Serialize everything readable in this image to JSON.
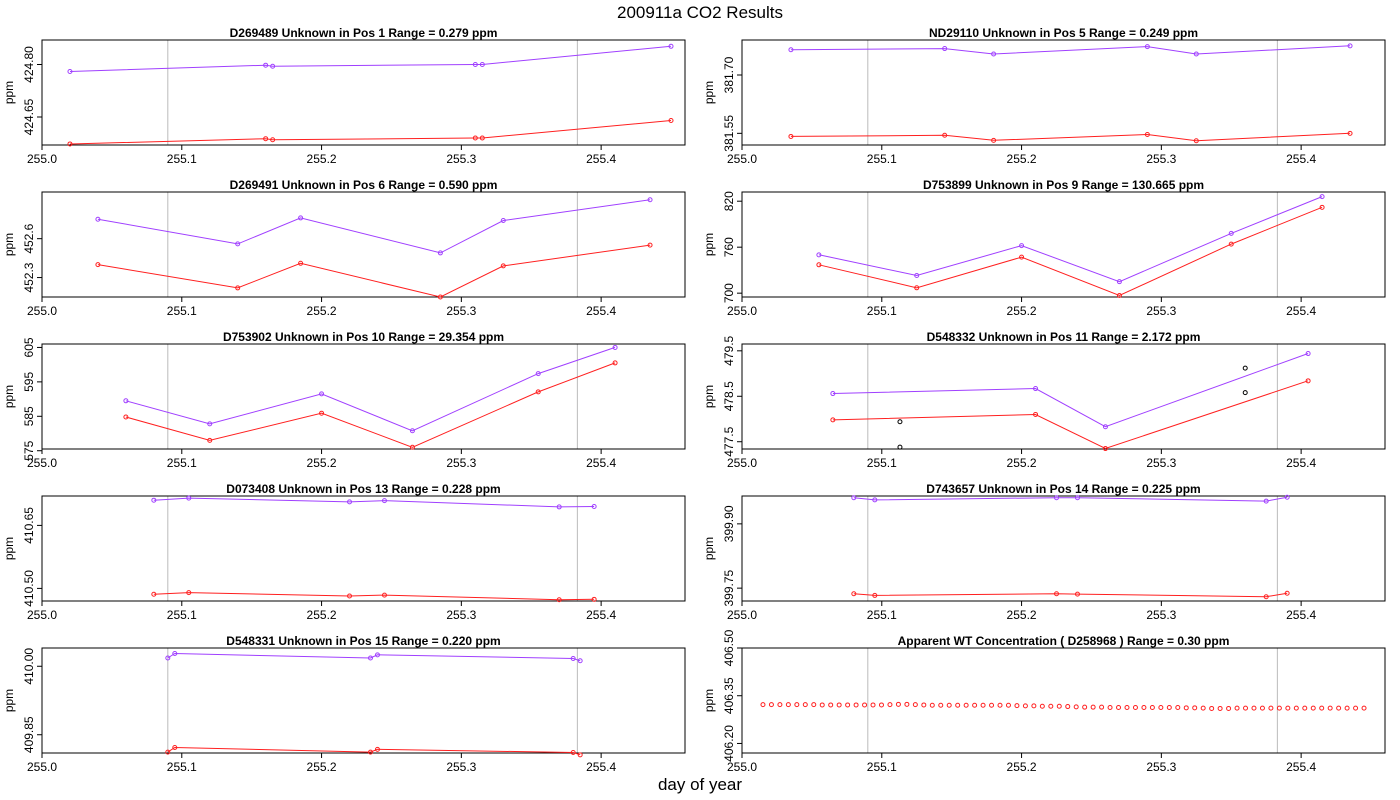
{
  "title": "200911a  CO2 Results",
  "xlabel": "day of year",
  "ylabel": "ppm",
  "colors": {
    "upper_series": "#a040ff",
    "lower_series": "#ff2020",
    "extra_points": "#000000",
    "vline": "#bbbbbb",
    "frame": "#000000"
  },
  "chart_data": [
    {
      "type": "line",
      "title": "D269489    Unknown in Pos 1          Range =  0.279 ppm",
      "xlabel": "",
      "ylabel": "ppm",
      "xlim": [
        255.0,
        255.46
      ],
      "ylim": [
        424.57,
        424.87
      ],
      "xticks": [
        "255.0",
        "255.1",
        "255.2",
        "255.3",
        "255.4"
      ],
      "yticks": [
        "424.65",
        "424.80"
      ],
      "vlines": [
        255.09,
        255.383
      ],
      "series": [
        {
          "name": "upper",
          "color": "#a040ff",
          "x": [
            255.02,
            255.16,
            255.165,
            255.31,
            255.315,
            255.45
          ],
          "y": [
            424.78,
            424.798,
            424.795,
            424.8,
            424.8,
            424.852
          ]
        },
        {
          "name": "lower",
          "color": "#ff2020",
          "x": [
            255.02,
            255.16,
            255.165,
            255.31,
            255.315,
            255.45
          ],
          "y": [
            424.573,
            424.588,
            424.585,
            424.59,
            424.59,
            424.64
          ]
        }
      ],
      "points": []
    },
    {
      "type": "line",
      "title": "ND29110    Unknown in Pos 5          Range =  0.249 ppm",
      "xlabel": "",
      "ylabel": "ppm",
      "xlim": [
        255.0,
        255.46
      ],
      "ylim": [
        381.52,
        381.79
      ],
      "xticks": [
        "255.0",
        "255.1",
        "255.2",
        "255.3",
        "255.4"
      ],
      "yticks": [
        "381.55",
        "381.70"
      ],
      "vlines": [
        255.09,
        255.383
      ],
      "series": [
        {
          "name": "upper",
          "color": "#a040ff",
          "x": [
            255.035,
            255.145,
            255.18,
            255.29,
            255.325,
            255.435
          ],
          "y": [
            381.765,
            381.768,
            381.754,
            381.773,
            381.754,
            381.775
          ]
        },
        {
          "name": "lower",
          "color": "#ff2020",
          "x": [
            255.035,
            255.145,
            255.18,
            255.29,
            255.325,
            255.435
          ],
          "y": [
            381.542,
            381.545,
            381.532,
            381.547,
            381.531,
            381.55
          ]
        }
      ],
      "points": []
    },
    {
      "type": "line",
      "title": "D269491    Unknown in Pos 6          Range =  0.590 ppm",
      "xlabel": "",
      "ylabel": "ppm",
      "xlim": [
        255.0,
        255.46
      ],
      "ylim": [
        452.15,
        452.96
      ],
      "xticks": [
        "255.0",
        "255.1",
        "255.2",
        "255.3",
        "255.4"
      ],
      "yticks": [
        "452.3",
        "452.6"
      ],
      "vlines": [
        255.09,
        255.383
      ],
      "series": [
        {
          "name": "upper",
          "color": "#a040ff",
          "x": [
            255.04,
            255.14,
            255.185,
            255.285,
            255.33,
            255.435
          ],
          "y": [
            452.75,
            452.56,
            452.76,
            452.49,
            452.74,
            452.9
          ]
        },
        {
          "name": "lower",
          "color": "#ff2020",
          "x": [
            255.04,
            255.14,
            255.185,
            255.285,
            255.33,
            255.435
          ],
          "y": [
            452.4,
            452.22,
            452.41,
            452.15,
            452.39,
            452.55
          ]
        }
      ],
      "points": []
    },
    {
      "type": "line",
      "title": "D753899    Unknown in Pos 9          Range =  130.665 ppm",
      "xlabel": "",
      "ylabel": "ppm",
      "xlim": [
        255.0,
        255.46
      ],
      "ylim": [
        695,
        832
      ],
      "xticks": [
        "255.0",
        "255.1",
        "255.2",
        "255.3",
        "255.4"
      ],
      "yticks": [
        "700",
        "760",
        "820"
      ],
      "vlines": [
        255.09,
        255.383
      ],
      "series": [
        {
          "name": "upper",
          "color": "#a040ff",
          "x": [
            255.055,
            255.125,
            255.2,
            255.27,
            255.35,
            255.415
          ],
          "y": [
            750,
            723,
            762,
            715,
            778,
            826
          ]
        },
        {
          "name": "lower",
          "color": "#ff2020",
          "x": [
            255.055,
            255.125,
            255.2,
            255.27,
            255.35,
            255.415
          ],
          "y": [
            737,
            707,
            747,
            697,
            764,
            812
          ]
        }
      ],
      "points": []
    },
    {
      "type": "line",
      "title": "D753902    Unknown in Pos 10          Range =  29.354 ppm",
      "xlabel": "",
      "ylabel": "ppm",
      "xlim": [
        255.0,
        255.46
      ],
      "ylim": [
        575.5,
        606
      ],
      "xticks": [
        "255.0",
        "255.1",
        "255.2",
        "255.3",
        "255.4"
      ],
      "yticks": [
        "575",
        "585",
        "595",
        "605"
      ],
      "vlines": [
        255.09,
        255.383
      ],
      "series": [
        {
          "name": "upper",
          "color": "#a040ff",
          "x": [
            255.06,
            255.12,
            255.2,
            255.265,
            255.355,
            255.41
          ],
          "y": [
            589.5,
            582.8,
            591.5,
            580.8,
            597.4,
            605
          ]
        },
        {
          "name": "lower",
          "color": "#ff2020",
          "x": [
            255.06,
            255.12,
            255.2,
            255.265,
            255.355,
            255.41
          ],
          "y": [
            584.8,
            578,
            585.9,
            576,
            592.1,
            600.5
          ]
        }
      ],
      "points": []
    },
    {
      "type": "line",
      "title": "D548332    Unknown in Pos 11          Range =  2.172 ppm",
      "xlabel": "",
      "ylabel": "ppm",
      "xlim": [
        255.0,
        255.46
      ],
      "ylim": [
        477.34,
        479.65
      ],
      "xticks": [
        "255.0",
        "255.1",
        "255.2",
        "255.3",
        "255.4"
      ],
      "yticks": [
        "477.5",
        "478.5",
        "479.5"
      ],
      "vlines": [
        255.09,
        255.383
      ],
      "series": [
        {
          "name": "upper",
          "color": "#a040ff",
          "x": [
            255.065,
            255.21,
            255.26,
            255.405
          ],
          "y": [
            478.56,
            478.67,
            477.83,
            479.44
          ]
        },
        {
          "name": "lower",
          "color": "#ff2020",
          "x": [
            255.065,
            255.21,
            255.26,
            255.405
          ],
          "y": [
            477.98,
            478.1,
            477.35,
            478.84
          ]
        }
      ],
      "points": [
        {
          "x": 255.113,
          "y": 477.94
        },
        {
          "x": 255.113,
          "y": 477.38
        },
        {
          "x": 255.36,
          "y": 479.12
        },
        {
          "x": 255.36,
          "y": 478.58
        }
      ]
    },
    {
      "type": "line",
      "title": "D073408    Unknown in Pos 13          Range =  0.228 ppm",
      "xlabel": "",
      "ylabel": "ppm",
      "xlim": [
        255.0,
        255.46
      ],
      "ylim": [
        410.47,
        410.72
      ],
      "xticks": [
        "255.0",
        "255.1",
        "255.2",
        "255.3",
        "255.4"
      ],
      "yticks": [
        "410.50",
        "410.65"
      ],
      "vlines": [
        255.09,
        255.383
      ],
      "series": [
        {
          "name": "upper",
          "color": "#a040ff",
          "x": [
            255.08,
            255.105,
            255.22,
            255.245,
            255.37,
            255.395
          ],
          "y": [
            410.71,
            410.715,
            410.706,
            410.709,
            410.694,
            410.695
          ]
        },
        {
          "name": "lower",
          "color": "#ff2020",
          "x": [
            255.08,
            255.105,
            255.22,
            255.245,
            255.37,
            255.395
          ],
          "y": [
            410.486,
            410.49,
            410.482,
            410.484,
            410.473,
            410.474
          ]
        }
      ],
      "points": []
    },
    {
      "type": "line",
      "title": "D743657    Unknown in Pos 14          Range =  0.225 ppm",
      "xlabel": "",
      "ylabel": "ppm",
      "xlim": [
        255.0,
        255.46
      ],
      "ylim": [
        399.72,
        399.965
      ],
      "xticks": [
        "255.0",
        "255.1",
        "255.2",
        "255.3",
        "255.4"
      ],
      "yticks": [
        "399.75",
        "399.90"
      ],
      "vlines": [
        255.09,
        255.383
      ],
      "series": [
        {
          "name": "upper",
          "color": "#a040ff",
          "x": [
            255.08,
            255.095,
            255.225,
            255.24,
            255.375,
            255.39
          ],
          "y": [
            399.961,
            399.956,
            399.961,
            399.961,
            399.953,
            399.962
          ]
        },
        {
          "name": "lower",
          "color": "#ff2020",
          "x": [
            255.08,
            255.095,
            255.225,
            255.24,
            255.375,
            255.39
          ],
          "y": [
            399.737,
            399.733,
            399.737,
            399.736,
            399.73,
            399.738
          ]
        }
      ],
      "points": []
    },
    {
      "type": "line",
      "title": "D548331    Unknown in Pos 15          Range =  0.220 ppm",
      "xlabel": "",
      "ylabel": "ppm",
      "xlim": [
        255.0,
        255.46
      ],
      "ylim": [
        409.81,
        410.04
      ],
      "xticks": [
        "255.0",
        "255.1",
        "255.2",
        "255.3",
        "255.4"
      ],
      "yticks": [
        "409.85",
        "410.00"
      ],
      "vlines": [
        255.09,
        255.383
      ],
      "series": [
        {
          "name": "upper",
          "color": "#a040ff",
          "x": [
            255.09,
            255.095,
            255.235,
            255.24,
            255.38,
            255.385
          ],
          "y": [
            410.018,
            410.028,
            410.018,
            410.025,
            410.017,
            410.012
          ]
        },
        {
          "name": "lower",
          "color": "#ff2020",
          "x": [
            255.09,
            255.095,
            255.235,
            255.24,
            255.38,
            255.385
          ],
          "y": [
            409.812,
            409.822,
            409.812,
            409.818,
            409.811,
            409.806
          ]
        }
      ],
      "points": []
    },
    {
      "type": "scatter",
      "title": "Apparent WT Concentration ( D258968 )          Range = 0.30 ppm",
      "xlabel": "",
      "ylabel": "ppm",
      "xlim": [
        255.0,
        255.46
      ],
      "ylim": [
        406.17,
        406.5
      ],
      "xticks": [
        "255.0",
        "255.1",
        "255.2",
        "255.3",
        "255.4"
      ],
      "yticks": [
        "406.20",
        "406.35",
        "406.50"
      ],
      "vlines": [
        255.09,
        255.383
      ],
      "series": [],
      "scatter": {
        "color": "#ff2020",
        "x_start": 255.015,
        "x_end": 255.445,
        "y": [
          406.322,
          406.322,
          406.322,
          406.322,
          406.322,
          406.322,
          406.322,
          406.321,
          406.321,
          406.321,
          406.321,
          406.321,
          406.321,
          406.321,
          406.321,
          406.322,
          406.323,
          406.323,
          406.322,
          406.321,
          406.32,
          406.32,
          406.32,
          406.32,
          406.32,
          406.32,
          406.32,
          406.32,
          406.32,
          406.32,
          406.319,
          406.318,
          406.318,
          406.317,
          406.317,
          406.317,
          406.316,
          406.315,
          406.314,
          406.314,
          406.314,
          406.313,
          406.313,
          406.313,
          406.313,
          406.313,
          406.313,
          406.313,
          406.313,
          406.313,
          406.312,
          406.312,
          406.311,
          406.31,
          406.31,
          406.31,
          406.311,
          406.311,
          406.311,
          406.311,
          406.311,
          406.311,
          406.311,
          406.311,
          406.311,
          406.311,
          406.311,
          406.311,
          406.311,
          406.311,
          406.311,
          406.311
        ]
      },
      "points": []
    }
  ]
}
